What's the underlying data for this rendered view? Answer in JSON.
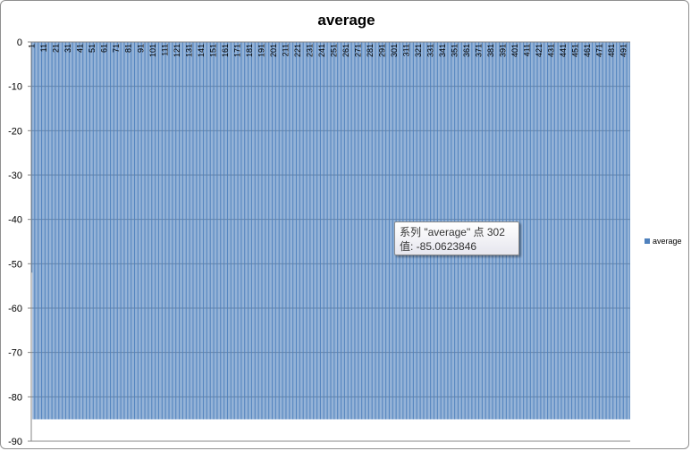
{
  "chart_data": {
    "type": "bar",
    "title": "average",
    "xlabel": "",
    "ylabel": "",
    "ylim": [
      -90,
      0
    ],
    "ytick_step": 10,
    "bar_color": "#4f81bd",
    "grid": true,
    "legend": {
      "position": "right",
      "entries": [
        "average"
      ]
    },
    "series": [
      {
        "name": "average",
        "count": 496,
        "start": 1,
        "value_first": -52,
        "value_rest": -85.0623846
      }
    ],
    "xtick_labels": [
      "1",
      "11",
      "21",
      "31",
      "41",
      "51",
      "61",
      "71",
      "81",
      "91",
      "101",
      "111",
      "121",
      "131",
      "141",
      "151",
      "161",
      "171",
      "181",
      "191",
      "201",
      "211",
      "221",
      "231",
      "241",
      "251",
      "261",
      "271",
      "281",
      "291",
      "301",
      "311",
      "321",
      "331",
      "341",
      "351",
      "361",
      "371",
      "381",
      "391",
      "401",
      "411",
      "421",
      "431",
      "441",
      "451",
      "461",
      "471",
      "481",
      "491"
    ],
    "tooltip": {
      "line1": "系列 \"average\" 点 302",
      "line2": "值: -85.0623846"
    }
  }
}
